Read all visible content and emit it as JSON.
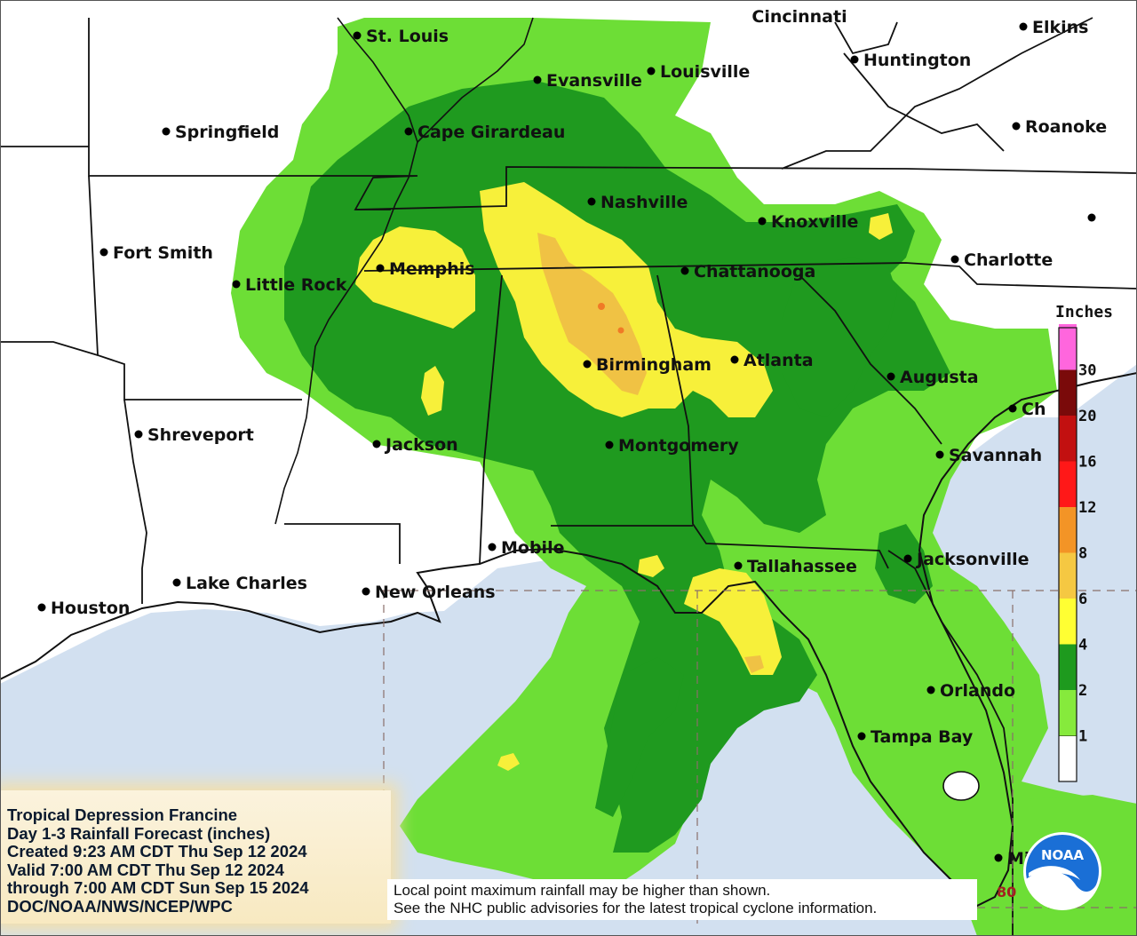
{
  "cities": [
    {
      "name": "St. Louis"
    },
    {
      "name": "Cincinnati"
    },
    {
      "name": "Elkins"
    },
    {
      "name": "Huntington"
    },
    {
      "name": "Evansville"
    },
    {
      "name": "Louisville"
    },
    {
      "name": "Springfield"
    },
    {
      "name": "Cape Girardeau"
    },
    {
      "name": "Roanoke"
    },
    {
      "name": "Nashville"
    },
    {
      "name": "Knoxville"
    },
    {
      "name": "Fort Smith"
    },
    {
      "name": "Charlotte"
    },
    {
      "name": "Memphis"
    },
    {
      "name": "Little Rock"
    },
    {
      "name": "Chattanooga"
    },
    {
      "name": "Atlanta"
    },
    {
      "name": "Birmingham"
    },
    {
      "name": "Augusta"
    },
    {
      "name": "Shreveport"
    },
    {
      "name": "Jackson"
    },
    {
      "name": "Montgomery"
    },
    {
      "name": "Savannah"
    },
    {
      "name": "Mobile"
    },
    {
      "name": "Tallahassee"
    },
    {
      "name": "Jacksonville"
    },
    {
      "name": "Lake Charles"
    },
    {
      "name": "New Orleans"
    },
    {
      "name": "Houston"
    },
    {
      "name": "Orlando"
    },
    {
      "name": "Tampa Bay"
    },
    {
      "name": "Mi"
    },
    {
      "name": "Ch"
    }
  ],
  "legend": {
    "title": "Inches",
    "stops": [
      {
        "label": "1",
        "color": "#86ea3c"
      },
      {
        "label": "2",
        "color": "#1e9a1e"
      },
      {
        "label": "4",
        "color": "#ffff33"
      },
      {
        "label": "6",
        "color": "#f5c842"
      },
      {
        "label": "8",
        "color": "#f39426"
      },
      {
        "label": "12",
        "color": "#ff1818"
      },
      {
        "label": "16",
        "color": "#c21010"
      },
      {
        "label": "20",
        "color": "#7a0a0a"
      },
      {
        "label": "30",
        "color": "#ff66dd"
      }
    ],
    "top_color": "#9b3bd9"
  },
  "colors": {
    "water": "#d2e0f0",
    "land": "#ffffff",
    "light_green": "#6dde36",
    "dark_green": "#1f9a1f",
    "yellow": "#f7f03a",
    "orange": "#f0c244",
    "red": "#f07a26"
  },
  "info": {
    "lines": [
      "Tropical Depression Francine",
      "Day 1-3 Rainfall Forecast (inches)",
      "Created 9:23 AM CDT Thu Sep 12 2024",
      "Valid 7:00 AM CDT Thu Sep 12 2024",
      "through 7:00 AM CDT Sun Sep 15 2024",
      "DOC/NOAA/NWS/NCEP/WPC"
    ]
  },
  "notes": {
    "line1": "Local point maximum rainfall may be higher than shown.",
    "line2": "See the NHC public advisories for the latest tropical cyclone information."
  },
  "grid_label": "80",
  "logo": {
    "text": "NOAA",
    "icon": "noaa-logo-icon"
  }
}
